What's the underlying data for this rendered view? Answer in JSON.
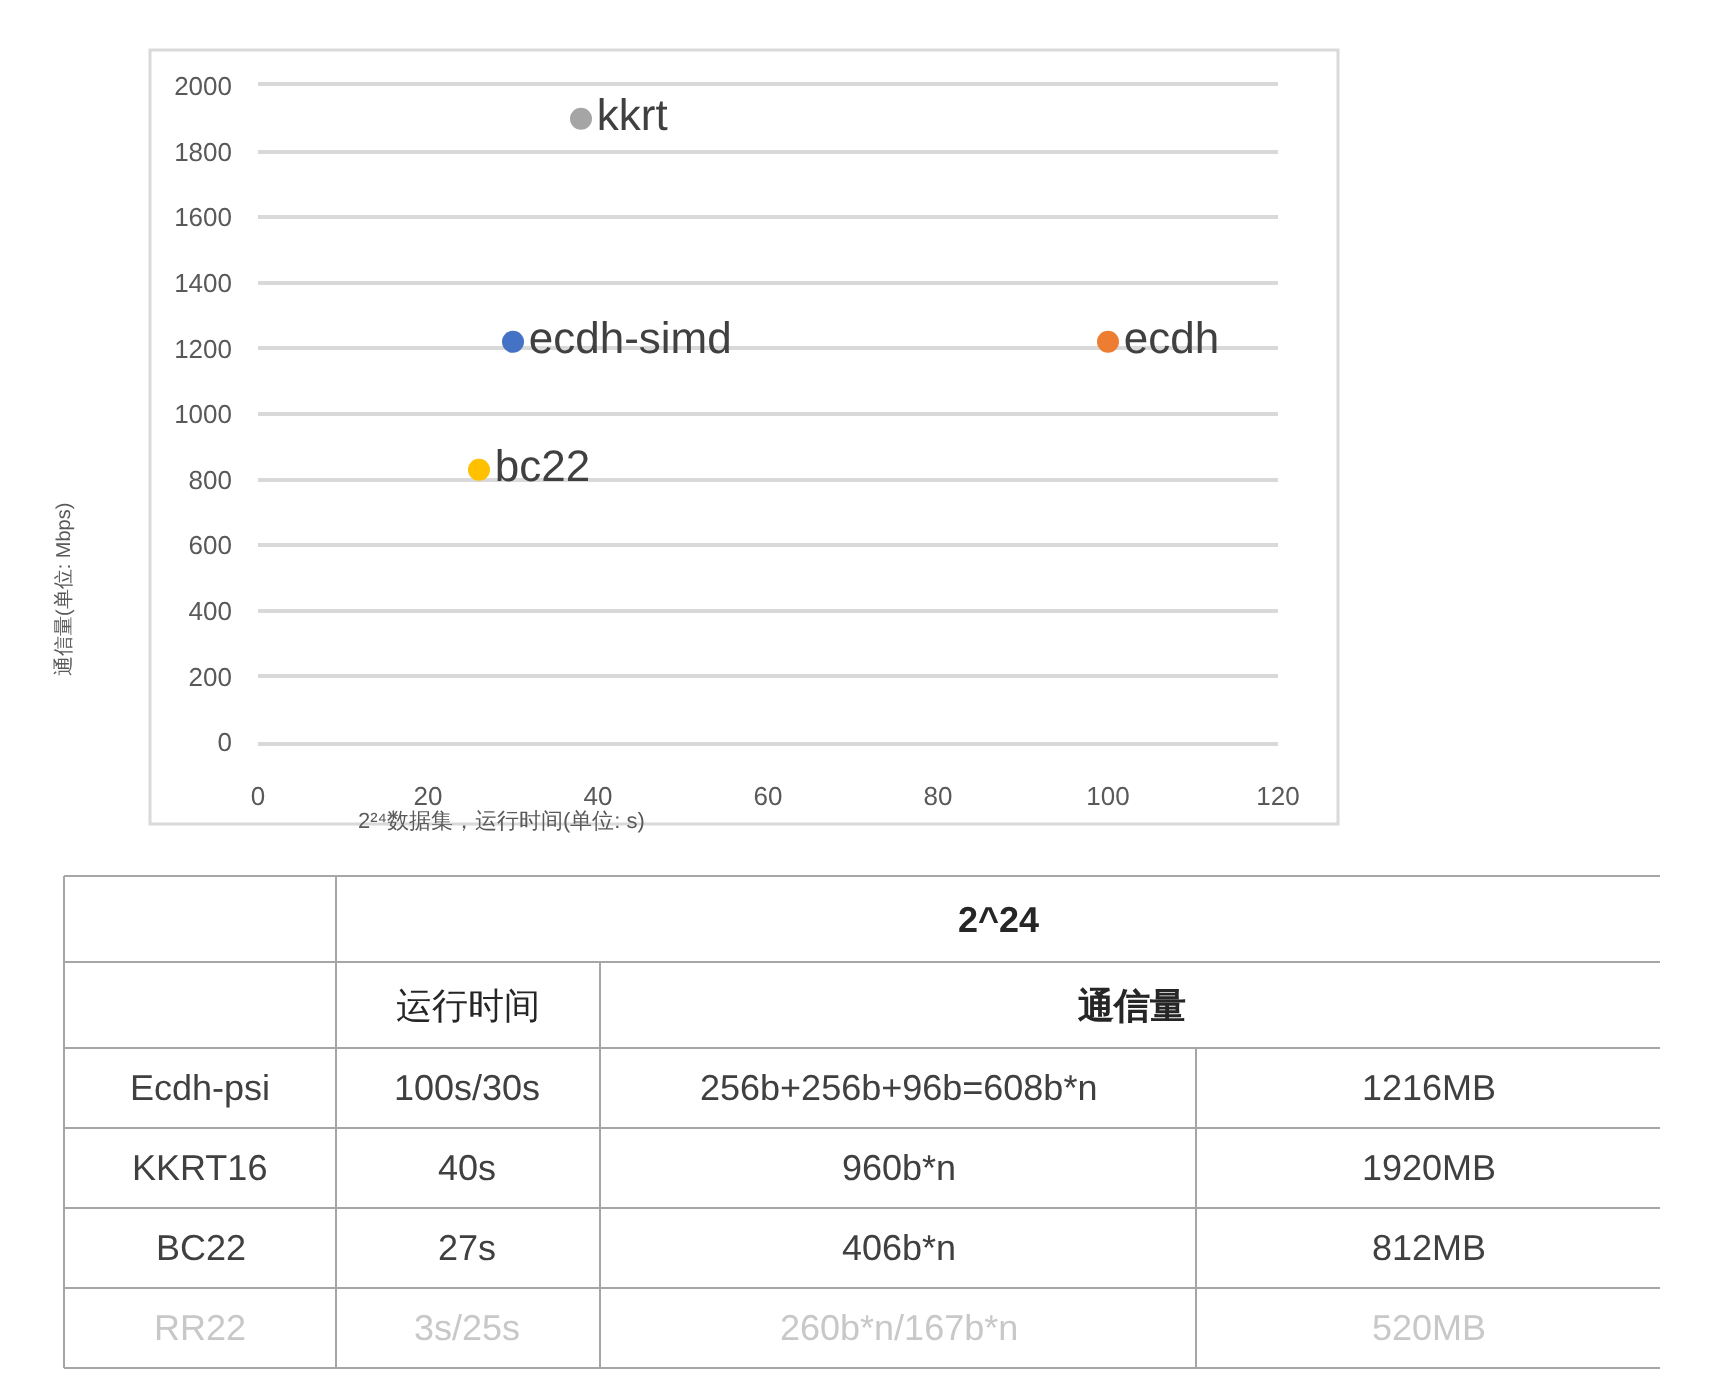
{
  "chart_data": [
    {
      "type": "scatter",
      "xlabel": "2²⁴数据集，运行时间(单位: s)",
      "ylabel": "通信量(单位: Mbps)",
      "series": [
        {
          "name": "kkrt",
          "color": "#a5a5a5",
          "x": [
            38
          ],
          "values": [
            1900
          ]
        },
        {
          "name": "ecdh-simd",
          "color": "#4472c4",
          "x": [
            30
          ],
          "values": [
            1220
          ]
        },
        {
          "name": "ecdh",
          "color": "#ed7d31",
          "x": [
            100
          ],
          "values": [
            1220
          ]
        },
        {
          "name": "bc22",
          "color": "#ffc000",
          "x": [
            26
          ],
          "values": [
            830
          ]
        }
      ],
      "xlim": [
        0,
        120
      ],
      "xticks": [
        0,
        20,
        40,
        60,
        80,
        100,
        120
      ],
      "ylim": [
        0,
        2000
      ],
      "yticks": [
        0,
        200,
        400,
        600,
        800,
        1000,
        1200,
        1400,
        1600,
        1800,
        2000
      ],
      "grid": "y",
      "marker": "circle"
    },
    {
      "type": "other",
      "annotations": [
        "2^24",
        "运行时间",
        "通信量",
        "Ecdh-psi",
        "100s/30s",
        "256b+256b+96b=608b*n",
        "1216MB",
        "KKRT16",
        "40s",
        "960b*n",
        "1920MB",
        "BC22",
        "27s",
        "406b*n",
        "812MB",
        "RR22",
        "3s/25s",
        "260b*n/167b*n",
        "520MB"
      ]
    }
  ]
}
